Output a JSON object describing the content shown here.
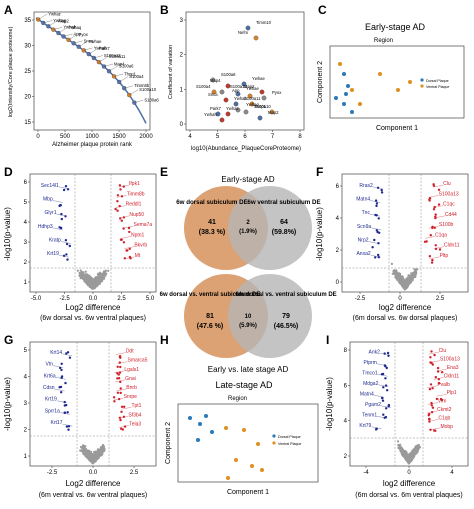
{
  "panel_letters": [
    "A",
    "B",
    "C",
    "D",
    "E",
    "F",
    "G",
    "H",
    "I"
  ],
  "colors": {
    "grey_points": "#9a9a9a",
    "red_points": "#d0202a",
    "blue_points": "#1f2a8f",
    "venn_orange": "#d6925a",
    "venn_grey": "#b5b5b5",
    "pca_orange": "#e0901f",
    "pca_blue": "#2a78b8"
  },
  "panel_a": {
    "ylabel": "log2(Intensity/Core plaque proteome)",
    "xlabel": "Alzheimer plaque protein rank",
    "yticks": [
      "35",
      "30",
      "25",
      "20",
      "15"
    ],
    "xticks": [
      "0",
      "500",
      "1000",
      "1500",
      "2000"
    ],
    "labels": [
      "Ywhaz",
      "Ywhag",
      "Map2",
      "Ywhab",
      "Ywhaq",
      "App",
      "Pyox",
      "Snca",
      "Ywhae",
      "Ywhah",
      "Park7",
      "S100a13",
      "S100a11",
      "Map4",
      "S100a6",
      "Thop1",
      "S100a4",
      "Timm8b",
      "S100a10",
      "S100a6"
    ]
  },
  "panel_b": {
    "ylabel": "Coefficient of variation",
    "xlabel": "log10(Abundance_PlaqueCoreProteome)",
    "yticks": [
      "3",
      "2",
      "1",
      "0"
    ],
    "xticks": [
      "4",
      "5",
      "6",
      "7",
      "8"
    ],
    "labels": [
      "Timm10",
      "Nefm",
      "S100a6",
      "Map4",
      "Ywhae",
      "S100a4",
      "S100a13",
      "Map2",
      "Ywhae",
      "App",
      "Pyox",
      "Snca",
      "S100a11",
      "Ywhab",
      "Ywhag",
      "Park7",
      "Ywhaz",
      "S100a10",
      "Thop1",
      "Ywhah",
      "Map2"
    ]
  },
  "panel_c": {
    "title": "Early-stage AD",
    "legend_title": "Region",
    "legend": [
      "Dorsal Plaque",
      "Ventral Plaque"
    ],
    "xlabel": "Component 1",
    "ylabel": "Component 2"
  },
  "panel_d": {
    "ylabel": "-log10(p-value)",
    "xlabel": "Log2 difference",
    "xlabel2": "(6w dorsal vs. 6w ventral plaques)",
    "yticks": [
      "6",
      "5",
      "4",
      "3",
      "2",
      "1"
    ],
    "xticks": [
      "-5.0",
      "-2.5",
      "0.0",
      "2.5",
      "5.0"
    ],
    "red_labels": [
      "Ifpk1",
      "Timm8b",
      "Reddl1",
      "Nup50",
      "Sema7a",
      "Nptn1",
      "Bkvrb",
      "Mt"
    ],
    "blue_labels": [
      "Sec14l1",
      "Mbp",
      "Glyr1",
      "Hdhp3",
      "Kratp",
      "Krt19"
    ]
  },
  "panel_e": {
    "title": "Early-stage AD",
    "top": {
      "left_title": "6w dorsal subiculum DE",
      "left_n": "41",
      "left_pct": "(38.3 %)",
      "mid_n": "2",
      "mid_pct": "(1.9%)",
      "right_title": "6w ventral subiculum DE",
      "right_n": "64",
      "right_pct": "(59.8%)"
    },
    "bottom": {
      "left_title": "6w dorsal vs. ventral subiculum DE",
      "left_n": "81",
      "left_pct": "(47.6 %)",
      "mid_n": "10",
      "mid_pct": "(5.9%)",
      "right_title": "6m dorsal vs. ventral subiculum DE",
      "right_n": "79",
      "right_pct": "(46.5%)"
    },
    "caption": "Early vs. late stage AD"
  },
  "panel_f": {
    "ylabel": "-log10(p-value)",
    "xlabel": "log2 difference",
    "xlabel2": "(6m dorsal vs. 6w dorsal plaques)",
    "yticks": [
      "6",
      "4",
      "2",
      "0"
    ],
    "xticks": [
      "-2.5",
      "0",
      "2.5"
    ],
    "red_labels": [
      "Clu",
      "S100a13",
      "C1qc",
      "Cd44",
      "S100b",
      "C1qa",
      "Cldn11",
      "Pltp"
    ],
    "blue_labels": [
      "Rras2",
      "Matn4",
      "Tnc",
      "Scn9a",
      "Nrp2",
      "Anxa2"
    ]
  },
  "panel_g": {
    "ylabel": "-log10(p-value)",
    "xlabel": "Log2 difference",
    "xlabel2": "(6m ventral vs. 6w ventral plaques)",
    "yticks": [
      "5",
      "4",
      "3",
      "2",
      "1"
    ],
    "xticks": [
      "-2.5",
      "0.0",
      "2.5"
    ],
    "red_labels": [
      "Ddt",
      "Smarca5",
      "Lgals1",
      "Gnai",
      "Bnrb",
      "Snrpe",
      "Tpt1",
      "Sf3b4",
      "Tela3"
    ],
    "blue_labels": [
      "Krt14",
      "Vtn",
      "Krt6a",
      "Cdsn",
      "Krt19",
      "Sprr1a",
      "Krt17"
    ]
  },
  "panel_h": {
    "title": "Late-stage AD",
    "legend_title": "Region",
    "legend": [
      "Dorsal Plaque",
      "Ventral Plaque"
    ],
    "xlabel": "Component 1",
    "ylabel": "Component 2"
  },
  "panel_i": {
    "ylabel": "-log10(p-value)",
    "xlabel": "log2 difference",
    "xlabel2": "(6m dorsal vs. 6m ventral plaques)",
    "yticks": [
      "8",
      "6",
      "4",
      "2"
    ],
    "xticks": [
      "-4",
      "0",
      "4"
    ],
    "red_labels": [
      "Clu",
      "S100a13",
      "Ena3",
      "Cldn11",
      "Pvalb",
      "Plp1",
      "Vim",
      "Ckmt2",
      "C1qb",
      "Mobp"
    ],
    "blue_labels": [
      "Ank2",
      "Ptprm",
      "Tmco1",
      "Mdga2",
      "Matn4",
      "Pgam2",
      "Tenm1",
      "Krt79"
    ]
  }
}
